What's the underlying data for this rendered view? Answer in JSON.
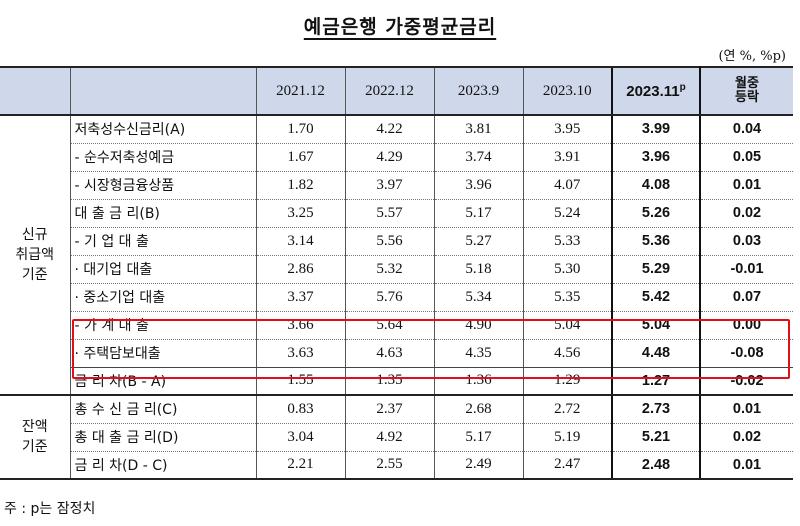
{
  "title": "예금은행 가중평균금리",
  "unit": "(연 %, %p)",
  "columns": [
    "2021.12",
    "2022.12",
    "2023.9",
    "2023.10",
    "2023.11",
    "p"
  ],
  "mom_header": [
    "월중",
    "등락"
  ],
  "groups": {
    "new": [
      "신규",
      "취급액",
      "기준"
    ],
    "balance": [
      "잔액",
      "기준"
    ]
  },
  "rows": [
    {
      "label": "저축성수신금리(A)",
      "v": [
        "1.70",
        "4.22",
        "3.81",
        "3.95"
      ],
      "cur": "3.99",
      "chg": "0.04"
    },
    {
      "label": "- 순수저축성예금",
      "v": [
        "1.67",
        "4.29",
        "3.74",
        "3.91"
      ],
      "cur": "3.96",
      "chg": "0.05"
    },
    {
      "label": "- 시장형금융상품",
      "v": [
        "1.82",
        "3.97",
        "3.96",
        "4.07"
      ],
      "cur": "4.08",
      "chg": "0.01"
    },
    {
      "label": "대 출 금 리(B)",
      "v": [
        "3.25",
        "5.57",
        "5.17",
        "5.24"
      ],
      "cur": "5.26",
      "chg": "0.02"
    },
    {
      "label": "- 기 업 대 출",
      "v": [
        "3.14",
        "5.56",
        "5.27",
        "5.33"
      ],
      "cur": "5.36",
      "chg": "0.03"
    },
    {
      "label": "· 대기업 대출",
      "v": [
        "2.86",
        "5.32",
        "5.18",
        "5.30"
      ],
      "cur": "5.29",
      "chg": "-0.01"
    },
    {
      "label": "· 중소기업 대출",
      "v": [
        "3.37",
        "5.76",
        "5.34",
        "5.35"
      ],
      "cur": "5.42",
      "chg": "0.07"
    },
    {
      "label": "- 가 계 대 출",
      "v": [
        "3.66",
        "5.64",
        "4.90",
        "5.04"
      ],
      "cur": "5.04",
      "chg": "0.00"
    },
    {
      "label": "· 주택담보대출",
      "v": [
        "3.63",
        "4.63",
        "4.35",
        "4.56"
      ],
      "cur": "4.48",
      "chg": "-0.08"
    },
    {
      "label": "금 리 차(B - A)",
      "v": [
        "1.55",
        "1.35",
        "1.36",
        "1.29"
      ],
      "cur": "1.27",
      "chg": "-0.02"
    },
    {
      "label": "총 수 신 금 리(C)",
      "v": [
        "0.83",
        "2.37",
        "2.68",
        "2.72"
      ],
      "cur": "2.73",
      "chg": "0.01"
    },
    {
      "label": "총 대 출 금 리(D)",
      "v": [
        "3.04",
        "4.92",
        "5.17",
        "5.19"
      ],
      "cur": "5.21",
      "chg": "0.02"
    },
    {
      "label": "금 리 차(D - C)",
      "v": [
        "2.21",
        "2.55",
        "2.49",
        "2.47"
      ],
      "cur": "2.48",
      "chg": "0.01"
    }
  ],
  "note": "주 : p는 잠정치",
  "highlight_color": "#e0101a"
}
